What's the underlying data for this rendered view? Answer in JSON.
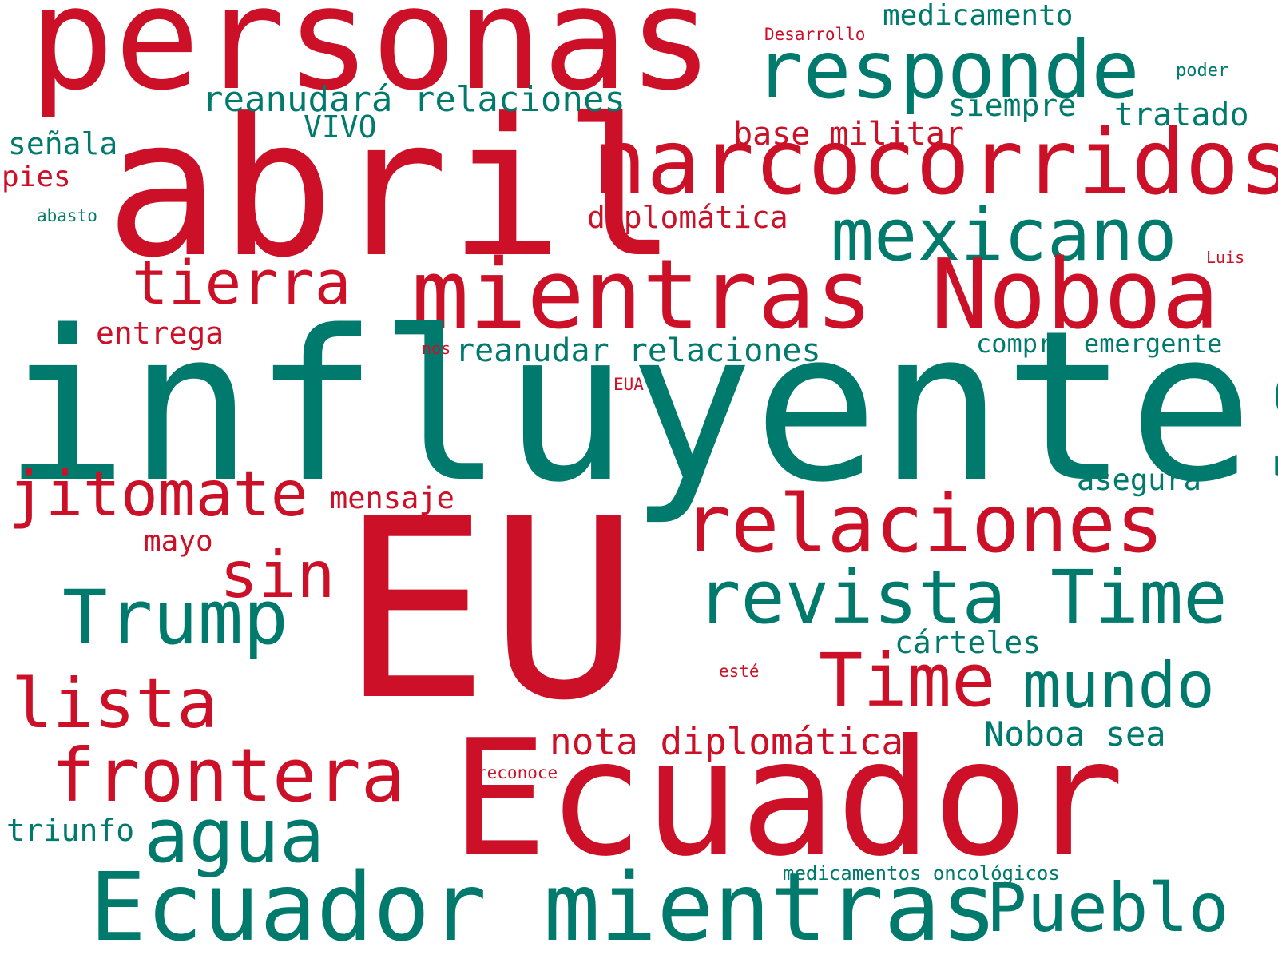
{
  "palette": {
    "red": "#cc1027",
    "teal": "#007a6c"
  },
  "words": [
    {
      "text": "personas",
      "color": "red"
    },
    {
      "text": "abril",
      "color": "red"
    },
    {
      "text": "responde",
      "color": "teal"
    },
    {
      "text": "narcocorridos",
      "color": "red"
    },
    {
      "text": "mexicano",
      "color": "teal"
    },
    {
      "text": "mientras Noboa",
      "color": "red"
    },
    {
      "text": "influyentes",
      "color": "teal"
    },
    {
      "text": "EU",
      "color": "red"
    },
    {
      "text": "Ecuador",
      "color": "red"
    },
    {
      "text": "relaciones",
      "color": "red"
    },
    {
      "text": "revista Time",
      "color": "teal"
    },
    {
      "text": "Time",
      "color": "red"
    },
    {
      "text": "mundo",
      "color": "teal"
    },
    {
      "text": "Ecuador mientras",
      "color": "teal"
    },
    {
      "text": "Pueblo",
      "color": "teal"
    },
    {
      "text": "Trump",
      "color": "teal"
    },
    {
      "text": "agua",
      "color": "teal"
    },
    {
      "text": "frontera",
      "color": "red"
    },
    {
      "text": "lista",
      "color": "red"
    },
    {
      "text": "jitomate",
      "color": "red"
    },
    {
      "text": "sin",
      "color": "red"
    },
    {
      "text": "tierra",
      "color": "red"
    },
    {
      "text": "medicamento",
      "color": "teal"
    },
    {
      "text": "Desarrollo",
      "color": "red"
    },
    {
      "text": "poder",
      "color": "teal"
    },
    {
      "text": "reanudará relaciones",
      "color": "teal"
    },
    {
      "text": "siempre",
      "color": "teal"
    },
    {
      "text": "tratado",
      "color": "teal"
    },
    {
      "text": "VIVO",
      "color": "teal"
    },
    {
      "text": "base militar",
      "color": "red"
    },
    {
      "text": "señala",
      "color": "teal"
    },
    {
      "text": "pies",
      "color": "red"
    },
    {
      "text": "abasto",
      "color": "teal"
    },
    {
      "text": "diplomática",
      "color": "red"
    },
    {
      "text": "Luis",
      "color": "red"
    },
    {
      "text": "entrega",
      "color": "red"
    },
    {
      "text": "nos",
      "color": "red"
    },
    {
      "text": "reanudar relaciones",
      "color": "teal"
    },
    {
      "text": "compra emergente",
      "color": "teal"
    },
    {
      "text": "EUA",
      "color": "red"
    },
    {
      "text": "asegura",
      "color": "teal"
    },
    {
      "text": "mensaje",
      "color": "red"
    },
    {
      "text": "mayo",
      "color": "red"
    },
    {
      "text": "cárteles",
      "color": "teal"
    },
    {
      "text": "esté",
      "color": "red"
    },
    {
      "text": "nota diplomática",
      "color": "red"
    },
    {
      "text": "Noboa sea",
      "color": "teal"
    },
    {
      "text": "reconoce",
      "color": "red"
    },
    {
      "text": "triunfo",
      "color": "teal"
    },
    {
      "text": "medicamentos oncológicos",
      "color": "teal"
    }
  ]
}
